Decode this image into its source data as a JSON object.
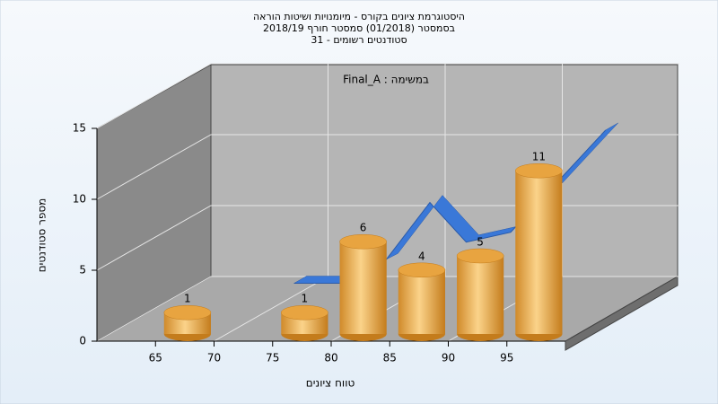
{
  "chart_data": {
    "type": "histogram",
    "title": [
      "היסטוגרמת ציונים בקורס - מיומנויות ושיטות הוראה",
      "בסמסטר  (01/2018)  סמסטר חורף 2018/19",
      "סטודנטים רשומים - 31"
    ],
    "subtitle": "במשימה : Final_A",
    "x_label": "טווח ציונים",
    "y_label": "מספר סטודנטים",
    "bins": [
      65,
      70,
      75,
      80,
      85,
      90,
      95,
      100
    ],
    "values": [
      1,
      0,
      1,
      6,
      4,
      5,
      11
    ],
    "color": "#e8a440",
    "curve": {
      "x": [
        72,
        76,
        79.8,
        83.6,
        86.7,
        90.5,
        98.6
      ],
      "values": [
        1.8,
        1.8,
        3.4,
        7.5,
        4.7,
        5.4,
        12.6
      ],
      "color": "#3a78d8"
    },
    "xlim": [
      60,
      100
    ],
    "xticks": [
      65,
      70,
      75,
      80,
      85,
      90,
      95
    ],
    "ylim": [
      0,
      15
    ],
    "yticks": [
      0,
      5,
      10,
      15
    ],
    "grid": true
  }
}
